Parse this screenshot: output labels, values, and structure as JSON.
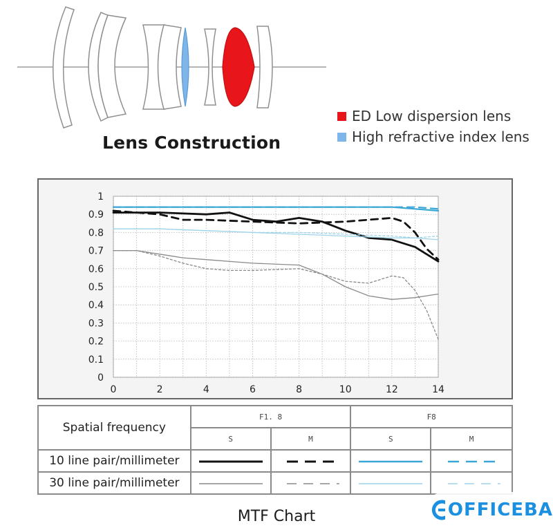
{
  "lens_section": {
    "title": "Lens Construction",
    "legend": [
      {
        "label": "ED Low dispersion lens",
        "color": "#e8161b"
      },
      {
        "label": "High refractive index lens",
        "color": "#7fb6ea"
      }
    ]
  },
  "chart_data": {
    "type": "line",
    "title": "MTF Chart",
    "xlabel": "",
    "ylabel": "",
    "xlim": [
      0,
      14
    ],
    "ylim": [
      0,
      1
    ],
    "x_ticks": [
      "0",
      "2",
      "4",
      "6",
      "8",
      "10",
      "12",
      "14"
    ],
    "y_ticks": [
      "0",
      "0.1",
      "0.2",
      "0.3",
      "0.4",
      "0.5",
      "0.6",
      "0.7",
      "0.8",
      "0.9",
      "1"
    ],
    "grid": true,
    "series": [
      {
        "group": "F1.8",
        "line": "S",
        "frequency": "10 line pair/millimeter",
        "color": "#111111",
        "x": [
          0,
          2,
          4,
          5,
          6,
          7,
          8,
          9,
          10,
          11,
          12,
          13,
          14
        ],
        "y": [
          0.91,
          0.91,
          0.9,
          0.91,
          0.87,
          0.86,
          0.88,
          0.86,
          0.81,
          0.77,
          0.76,
          0.72,
          0.64
        ]
      },
      {
        "group": "F1.8",
        "line": "M",
        "frequency": "10 line pair/millimeter",
        "color": "#111111",
        "x": [
          0,
          2,
          3,
          4,
          6,
          8,
          10,
          12,
          12.5,
          13,
          13.5,
          14
        ],
        "y": [
          0.92,
          0.9,
          0.87,
          0.87,
          0.86,
          0.85,
          0.86,
          0.88,
          0.86,
          0.8,
          0.71,
          0.65
        ]
      },
      {
        "group": "F8",
        "line": "S",
        "frequency": "10 line pair/millimeter",
        "color": "#3aa6d6",
        "x": [
          0,
          2,
          4,
          6,
          8,
          10,
          12,
          13,
          14
        ],
        "y": [
          0.94,
          0.94,
          0.94,
          0.94,
          0.94,
          0.94,
          0.94,
          0.93,
          0.92
        ]
      },
      {
        "group": "F8",
        "line": "M",
        "frequency": "10 line pair/millimeter",
        "color": "#3aa6d6",
        "x": [
          0,
          2,
          4,
          6,
          8,
          10,
          12,
          13,
          14
        ],
        "y": [
          0.94,
          0.94,
          0.94,
          0.94,
          0.94,
          0.94,
          0.94,
          0.94,
          0.93
        ]
      },
      {
        "group": "F1.8",
        "line": "S",
        "frequency": "30 line pair/millimeter",
        "color": "#8a8a8a",
        "x": [
          0,
          1,
          2,
          3,
          4,
          6,
          8,
          9,
          10,
          11,
          12,
          13,
          14
        ],
        "y": [
          0.7,
          0.7,
          0.68,
          0.66,
          0.65,
          0.63,
          0.62,
          0.57,
          0.5,
          0.45,
          0.43,
          0.44,
          0.46
        ]
      },
      {
        "group": "F1.8",
        "line": "M",
        "frequency": "30 line pair/millimeter",
        "color": "#8a8a8a",
        "x": [
          0,
          1,
          2,
          3,
          4,
          5,
          6,
          8,
          9,
          10,
          11,
          12,
          12.5,
          13,
          13.5,
          14
        ],
        "y": [
          0.7,
          0.7,
          0.67,
          0.63,
          0.6,
          0.59,
          0.59,
          0.6,
          0.57,
          0.53,
          0.52,
          0.56,
          0.55,
          0.48,
          0.37,
          0.21
        ]
      },
      {
        "group": "F8",
        "line": "S",
        "frequency": "30 line pair/millimeter",
        "color": "#9fd3ea",
        "x": [
          0,
          2,
          4,
          6,
          8,
          10,
          12,
          13,
          14
        ],
        "y": [
          0.82,
          0.82,
          0.81,
          0.8,
          0.79,
          0.78,
          0.77,
          0.77,
          0.76
        ]
      },
      {
        "group": "F8",
        "line": "M",
        "frequency": "30 line pair/millimeter",
        "color": "#9fd3ea",
        "x": [
          0,
          2,
          4,
          6,
          8,
          10,
          12,
          13,
          14
        ],
        "y": [
          0.82,
          0.82,
          0.81,
          0.8,
          0.8,
          0.79,
          0.78,
          0.77,
          0.78
        ]
      }
    ]
  },
  "table": {
    "header_label": "Spatial frequency",
    "groups": [
      "F1. 8",
      "F8"
    ],
    "sub_headers": [
      "S",
      "M",
      "S",
      "M"
    ],
    "rows": [
      {
        "label": "10 line pair/millimeter"
      },
      {
        "label": "30 line pair/millimeter"
      }
    ]
  },
  "watermark": {
    "text": "OFFICEBA"
  }
}
